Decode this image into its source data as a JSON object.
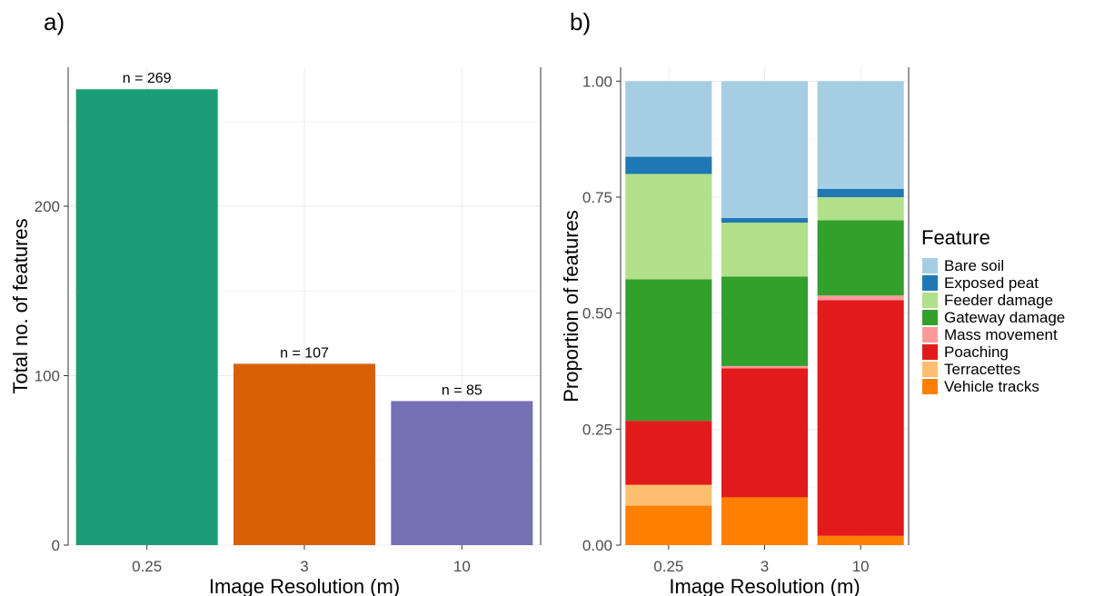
{
  "chart_data": [
    {
      "panel": "a)",
      "type": "bar",
      "categories": [
        "0.25",
        "3",
        "10"
      ],
      "values": [
        269,
        107,
        85
      ],
      "data_labels": [
        "n = 269",
        "n = 107",
        "n = 85"
      ],
      "colors": [
        "#1b9e77",
        "#d95f02",
        "#7570b3"
      ],
      "xlabel": "Image Resolution (m)",
      "ylabel": "Total no. of features",
      "ylim": [
        0,
        282
      ],
      "yticks": [
        0,
        100,
        200
      ],
      "ytick_labels": [
        "0",
        "100",
        "200"
      ],
      "grid": true
    },
    {
      "panel": "b)",
      "type": "bar",
      "stacked": true,
      "categories": [
        "0.25",
        "3",
        "10"
      ],
      "xlabel": "Image Resolution (m)",
      "ylabel": "Proportion of features",
      "ylim": [
        0,
        1.03
      ],
      "yticks": [
        0,
        0.25,
        0.5,
        0.75,
        1.0
      ],
      "ytick_labels": [
        "0.00",
        "0.25",
        "0.50",
        "0.75",
        "1.00"
      ],
      "legend_title": "Feature",
      "legend_position": "right",
      "grid": true,
      "series": [
        {
          "name": "Vehicle tracks",
          "color": "#ff7f00",
          "values": [
            0.085,
            0.103,
            0.02
          ]
        },
        {
          "name": "Terracettes",
          "color": "#fdbf6f",
          "values": [
            0.045,
            0.0,
            0.0
          ]
        },
        {
          "name": "Poaching",
          "color": "#e31a1c",
          "values": [
            0.138,
            0.278,
            0.508
          ]
        },
        {
          "name": "Mass movement",
          "color": "#fb9a99",
          "values": [
            0.0,
            0.005,
            0.01
          ]
        },
        {
          "name": "Gateway damage",
          "color": "#33a02c",
          "values": [
            0.305,
            0.193,
            0.162
          ]
        },
        {
          "name": "Feeder damage",
          "color": "#b2df8a",
          "values": [
            0.227,
            0.116,
            0.05
          ]
        },
        {
          "name": "Exposed peat",
          "color": "#1f78b4",
          "values": [
            0.037,
            0.01,
            0.018
          ]
        },
        {
          "name": "Bare soil",
          "color": "#a6cee3",
          "values": [
            0.163,
            0.295,
            0.232
          ]
        }
      ],
      "legend_order": [
        "Bare soil",
        "Exposed peat",
        "Feeder damage",
        "Gateway damage",
        "Mass movement",
        "Poaching",
        "Terracettes",
        "Vehicle tracks"
      ]
    }
  ]
}
